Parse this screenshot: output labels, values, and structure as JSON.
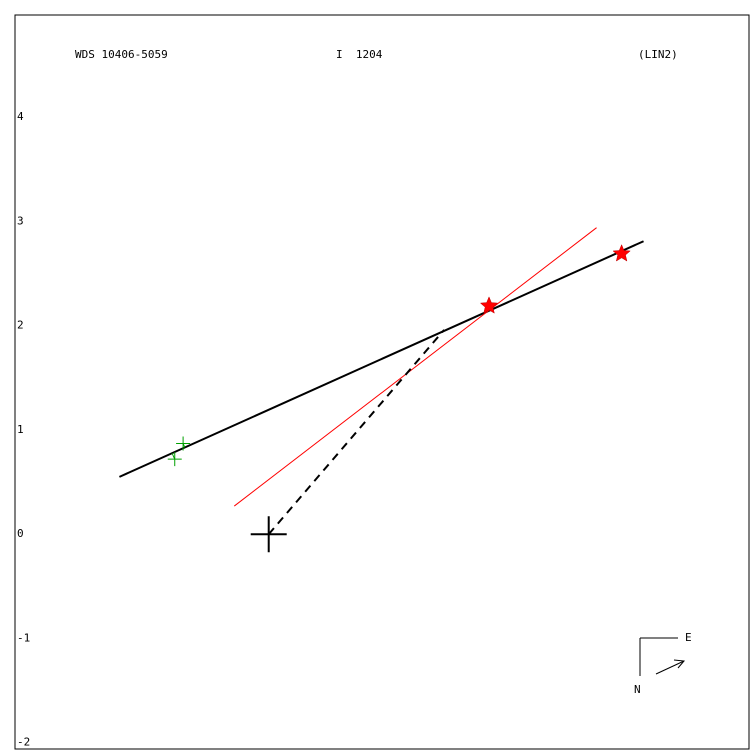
{
  "chart_data": {
    "type": "scatter",
    "title": "WDS 10406-5059",
    "subtitle": "I  1204",
    "annotation": "(LIN2)",
    "xlim": [
      -2.43,
      4.6
    ],
    "ylim": [
      -2.06,
      4.98
    ],
    "yticks": [
      -2,
      -1,
      0,
      1,
      2,
      3,
      4
    ],
    "lines": [
      {
        "color": "#000000",
        "x": [
          -1.43,
          3.59
        ],
        "y": [
          0.55,
          2.81
        ]
      },
      {
        "color": "#ff0000",
        "x": [
          -0.33,
          3.14
        ],
        "y": [
          0.27,
          2.94
        ]
      },
      {
        "color": "#000000",
        "dashed": true,
        "x": [
          0,
          1.68
        ],
        "y": [
          0,
          1.96
        ]
      }
    ],
    "series": [
      {
        "color": "#ff0000",
        "marker": "star",
        "x": [
          2.11,
          3.38
        ],
        "y": [
          2.19,
          2.69
        ]
      },
      {
        "color": "#00a000",
        "marker": "plus",
        "x": [
          -0.82,
          -0.9
        ],
        "y": [
          0.87,
          0.72
        ]
      }
    ],
    "origin": [
      0,
      0
    ],
    "compass": {
      "east": "E",
      "north": "N"
    }
  }
}
